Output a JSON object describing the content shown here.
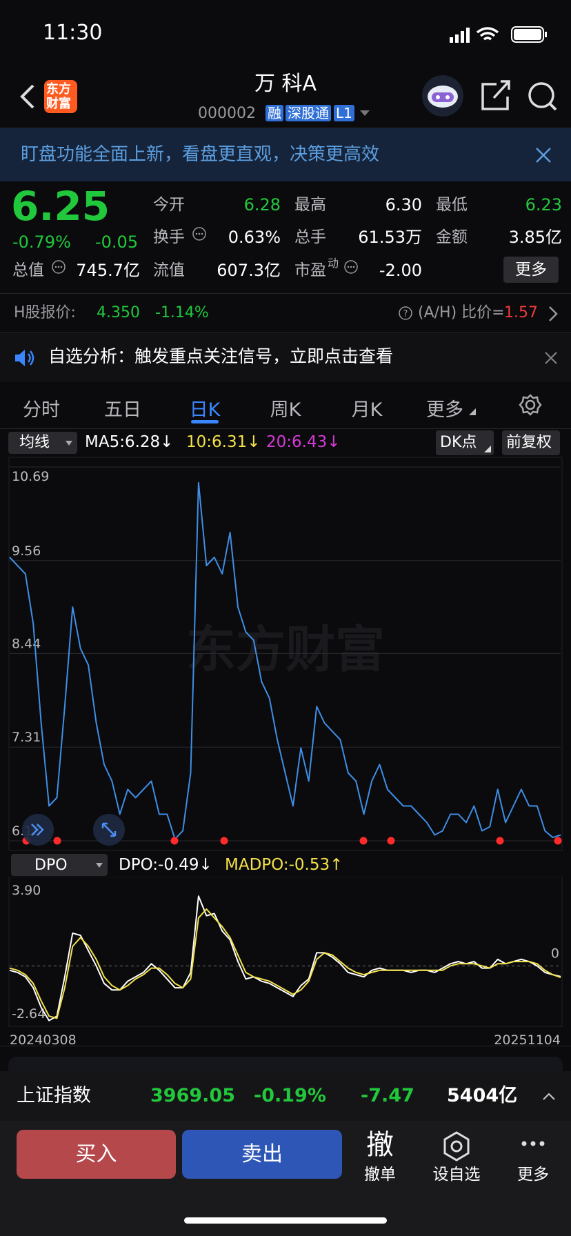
{
  "status_bar": {
    "time": "11:30"
  },
  "header": {
    "logo": [
      "东方",
      "财富"
    ],
    "stock_name": "万 科A",
    "code": "000002",
    "tags": [
      "融",
      "深股通",
      "L1"
    ]
  },
  "banner": {
    "text": "盯盘功能全面上新，看盘更直观，决策更高效"
  },
  "quote": {
    "price": "6.25",
    "change_pct": "-0.79%",
    "change": "-0.05",
    "fields": [
      {
        "label": "今开",
        "value": "6.28"
      },
      {
        "label": "最高",
        "value": "6.30"
      },
      {
        "label": "最低",
        "value": "6.23"
      },
      {
        "label": "换手",
        "value": "0.63%"
      },
      {
        "label": "总手",
        "value": "61.53万"
      },
      {
        "label": "金额",
        "value": "3.85亿"
      },
      {
        "label": "总值",
        "value": "745.7亿"
      },
      {
        "label": "流值",
        "value": "607.3亿"
      },
      {
        "label": "市盈",
        "sup": "动",
        "value": "-2.00"
      }
    ],
    "more": "更多"
  },
  "h_share": {
    "label": "H股报价:",
    "price": "4.350",
    "change_pct": "-1.14%",
    "ratio_label": "(A/H) 比价=",
    "ratio": "1.57"
  },
  "notice": {
    "text": "自选分析：触发重点关注信号，立即点击查看"
  },
  "tabs": {
    "items": [
      "分时",
      "五日",
      "日K",
      "周K",
      "月K",
      "更多"
    ],
    "active": 2
  },
  "indicator_bar": {
    "selector": "均线",
    "items": [
      {
        "text": "MA5:6.28↓",
        "color": "#ffffff"
      },
      {
        "text": "10:6.31↓",
        "color": "#f3e24b"
      },
      {
        "text": "20:6.43↓",
        "color": "#d63ad6"
      }
    ],
    "dk": "DK点",
    "adjust": "前复权"
  },
  "chart_data": [
    {
      "type": "line",
      "watermark": "东方财富",
      "ylim": [
        6.18,
        10.69
      ],
      "yticks": [
        10.69,
        9.56,
        8.44,
        7.31,
        6.18
      ],
      "grid": true,
      "series": [
        {
          "color": "#3f8ee6",
          "values": [
            9.6,
            9.5,
            9.4,
            8.8,
            7.6,
            6.6,
            6.7,
            7.8,
            9.0,
            8.5,
            8.3,
            7.6,
            7.1,
            6.9,
            6.5,
            6.8,
            6.7,
            6.8,
            6.9,
            6.5,
            6.5,
            6.2,
            6.3,
            7.0,
            10.5,
            9.5,
            9.6,
            9.4,
            9.9,
            9.0,
            8.7,
            8.6,
            8.1,
            7.9,
            7.4,
            7.0,
            6.6,
            7.3,
            6.9,
            7.8,
            7.6,
            7.5,
            7.4,
            7.0,
            6.9,
            6.5,
            6.9,
            7.1,
            6.8,
            6.7,
            6.6,
            6.6,
            6.5,
            6.4,
            6.25,
            6.3,
            6.5,
            6.5,
            6.4,
            6.6,
            6.3,
            6.35,
            6.8,
            6.4,
            6.6,
            6.8,
            6.6,
            6.6,
            6.3,
            6.22,
            6.25
          ]
        }
      ]
    },
    {
      "type": "line",
      "ylim": [
        -2.64,
        3.9
      ],
      "yticks": [
        {
          "value": 3.9,
          "label": "3.90"
        },
        0,
        -2.64
      ],
      "categories": [
        "20240308",
        null,
        null,
        null,
        null,
        null,
        null,
        null,
        null,
        null,
        null,
        null,
        null,
        null,
        null,
        null,
        null,
        null,
        null,
        null,
        null,
        null,
        null,
        null,
        null,
        null,
        null,
        null,
        null,
        null,
        null,
        null,
        null,
        null,
        null,
        null,
        null,
        null,
        null,
        null,
        null,
        null,
        null,
        null,
        null,
        null,
        null,
        null,
        null,
        null,
        null,
        null,
        null,
        null,
        null,
        null,
        null,
        null,
        null,
        null,
        null,
        null,
        null,
        null,
        null,
        null,
        null,
        null,
        null,
        null,
        "20251104"
      ],
      "series": [
        {
          "color": "#ffffff",
          "values": [
            -0.2,
            -0.3,
            -0.5,
            -1.0,
            -1.9,
            -2.5,
            -2.3,
            -0.5,
            1.5,
            1.4,
            0.7,
            0,
            -0.8,
            -1.1,
            -1.1,
            -0.7,
            -0.5,
            -0.3,
            0.1,
            -0.2,
            -0.6,
            -1.0,
            -1.0,
            -0.3,
            3.2,
            2.3,
            2.4,
            1.6,
            1.2,
            0.2,
            -0.6,
            -0.5,
            -0.7,
            -0.8,
            -1.0,
            -1.2,
            -1.4,
            -0.9,
            -0.6,
            0.6,
            0.6,
            0.4,
            0.1,
            -0.3,
            -0.4,
            -0.5,
            -0.2,
            -0.1,
            -0.2,
            -0.2,
            -0.2,
            -0.3,
            -0.2,
            -0.2,
            -0.3,
            -0.1,
            0.1,
            0.2,
            0.1,
            0.2,
            -0.1,
            -0.1,
            0.3,
            0.1,
            0.2,
            0.3,
            0.2,
            0,
            -0.3,
            -0.4,
            -0.49
          ]
        },
        {
          "color": "#f3e24b",
          "values": [
            -0.1,
            -0.2,
            -0.4,
            -0.8,
            -1.6,
            -2.3,
            -2.4,
            -1.0,
            0.9,
            1.3,
            0.9,
            0.3,
            -0.5,
            -0.9,
            -1.1,
            -0.9,
            -0.6,
            -0.4,
            -0.1,
            -0.1,
            -0.4,
            -0.8,
            -1.0,
            -0.6,
            2.2,
            2.6,
            2.2,
            1.8,
            1.3,
            0.5,
            -0.3,
            -0.5,
            -0.6,
            -0.7,
            -0.9,
            -1.1,
            -1.3,
            -1.1,
            -0.7,
            0.3,
            0.6,
            0.5,
            0.2,
            -0.1,
            -0.3,
            -0.4,
            -0.3,
            -0.2,
            -0.2,
            -0.2,
            -0.2,
            -0.2,
            -0.2,
            -0.2,
            -0.2,
            -0.2,
            0,
            0.1,
            0.1,
            0.1,
            0,
            -0.1,
            0.1,
            0.1,
            0.2,
            0.2,
            0.2,
            0.1,
            -0.2,
            -0.4,
            -0.53
          ]
        }
      ]
    }
  ],
  "dpo_bar": {
    "selector": "DPO",
    "items": [
      {
        "text": "DPO:-0.49↓",
        "color": "#ffffff"
      },
      {
        "text": "MADPO:-0.53↑",
        "color": "#f3e24b"
      }
    ]
  },
  "index_bar": {
    "name": "上证指数",
    "value": "3969.05",
    "change_pct": "-0.19%",
    "change": "-7.47",
    "turnover": "5404亿"
  },
  "actions": {
    "buy": "买入",
    "sell": "卖出",
    "cancel_icon": "撤",
    "cancel": "撤单",
    "watch": "设自选",
    "more": "更多"
  }
}
